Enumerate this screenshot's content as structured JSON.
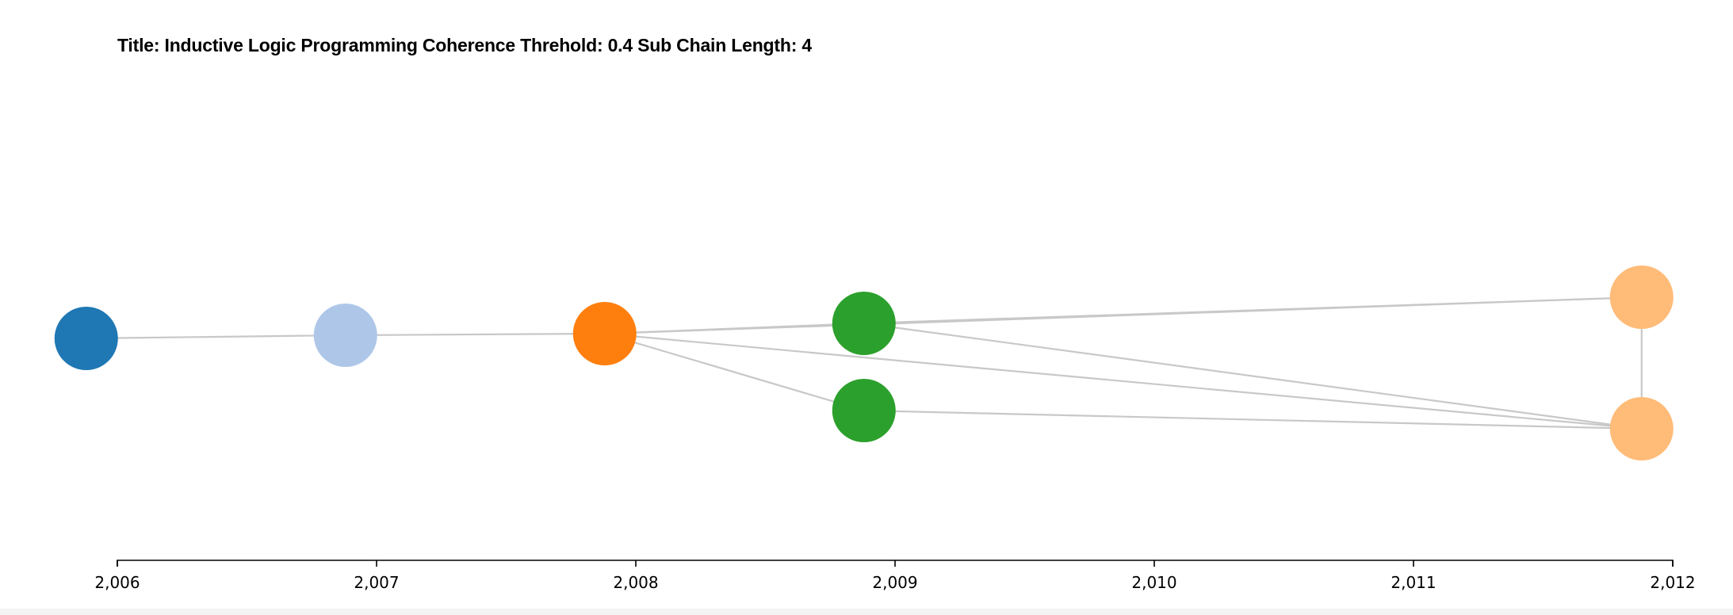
{
  "title": "Title: Inductive Logic Programming Coherence Threhold: 0.4 Sub Chain Length: 4",
  "chart_data": {
    "type": "network",
    "x_axis": {
      "min": 2006,
      "max": 2012,
      "ticks": [
        2006,
        2007,
        2008,
        2009,
        2010,
        2011,
        2012
      ],
      "tick_labels": [
        "2,006",
        "2,007",
        "2,008",
        "2,009",
        "2,010",
        "2,011",
        "2,012"
      ]
    },
    "nodes": [
      {
        "id": "n1",
        "x": 2005.88,
        "color": "#1f77b4"
      },
      {
        "id": "n2",
        "x": 2006.88,
        "color": "#aec7e8"
      },
      {
        "id": "n3",
        "x": 2007.88,
        "color": "#ff7f0e"
      },
      {
        "id": "n4",
        "x": 2008.88,
        "color": "#2ca02c"
      },
      {
        "id": "n5",
        "x": 2008.88,
        "color": "#2ca02c"
      },
      {
        "id": "n6",
        "x": 2011.88,
        "color": "#ffbb78"
      },
      {
        "id": "n7",
        "x": 2011.88,
        "color": "#ffbb78"
      }
    ],
    "edges": [
      [
        "n1",
        "n2"
      ],
      [
        "n2",
        "n3"
      ],
      [
        "n3",
        "n4"
      ],
      [
        "n3",
        "n5"
      ],
      [
        "n3",
        "n6"
      ],
      [
        "n3",
        "n7"
      ],
      [
        "n4",
        "n6"
      ],
      [
        "n4",
        "n7"
      ],
      [
        "n5",
        "n7"
      ],
      [
        "n6",
        "n7"
      ]
    ]
  }
}
